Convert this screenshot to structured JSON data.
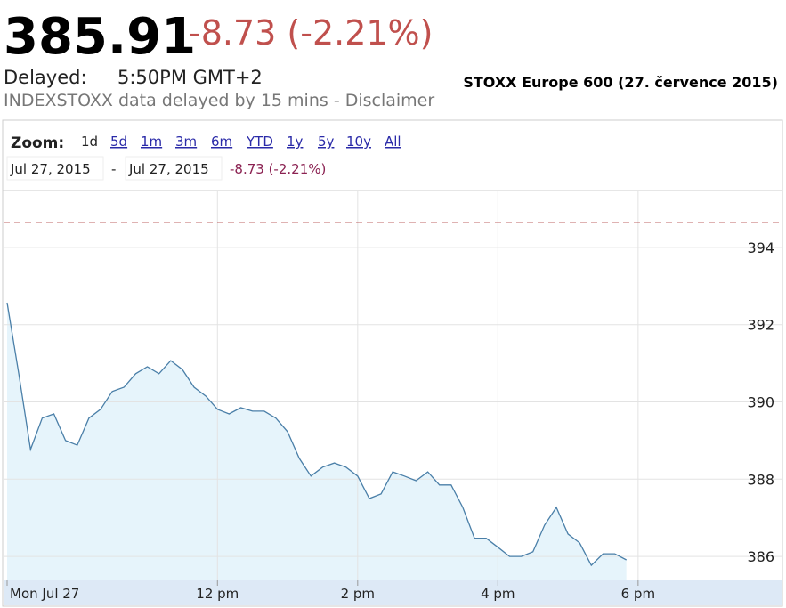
{
  "header": {
    "price": "385.91",
    "change": "-8.73 (-2.21%)",
    "delayed_label": "Delayed:",
    "delayed_time": "5:50PM GMT+2",
    "disclaimer": "INDEXSTOXX data delayed by 15 mins - Disclaimer",
    "side_title": "STOXX Europe 600 (27. července 2015)"
  },
  "zoom": {
    "label": "Zoom:",
    "options": [
      "1d",
      "5d",
      "1m",
      "3m",
      "6m",
      "YTD",
      "1y",
      "5y",
      "10y",
      "All"
    ],
    "from": "Jul 27, 2015",
    "separator": "-",
    "to": "Jul 27, 2015",
    "change": "-8.73 (-2.21%)"
  },
  "chart_data": {
    "type": "line",
    "x": [
      540,
      550,
      560,
      570,
      580,
      590,
      600,
      610,
      620,
      630,
      640,
      650,
      660,
      670,
      680,
      690,
      700,
      710,
      720,
      730,
      740,
      750,
      760,
      770,
      780,
      790,
      800,
      810,
      820,
      830,
      840,
      850,
      860,
      870,
      880,
      890,
      900,
      910,
      920,
      930,
      940,
      950,
      960,
      970,
      980,
      990,
      1000,
      1010,
      1020,
      1030,
      1040,
      1050,
      1060,
      1070
    ],
    "values": [
      392.57,
      390.73,
      388.77,
      389.58,
      389.69,
      389.0,
      388.88,
      389.58,
      389.81,
      390.27,
      390.38,
      390.73,
      390.91,
      390.73,
      391.07,
      390.84,
      390.38,
      390.15,
      389.81,
      389.69,
      389.85,
      389.76,
      389.76,
      389.58,
      389.23,
      388.54,
      388.08,
      388.31,
      388.42,
      388.31,
      388.08,
      387.5,
      387.62,
      388.19,
      388.08,
      387.96,
      388.19,
      387.85,
      387.85,
      387.27,
      386.47,
      386.47,
      386.24,
      386.0,
      386.0,
      386.12,
      386.81,
      387.27,
      386.58,
      386.35,
      385.77,
      386.07,
      386.07,
      385.91
    ],
    "color": "#4a7fa8",
    "fill": "#e6f4fb",
    "previous_close": 394.64,
    "xlim": [
      540,
      1202
    ],
    "xticks": [
      {
        "value": 540,
        "label": "Mon Jul 27"
      },
      {
        "value": 720,
        "label": "12 pm"
      },
      {
        "value": 840,
        "label": "2 pm"
      },
      {
        "value": 960,
        "label": "4 pm"
      },
      {
        "value": 1080,
        "label": "6 pm"
      }
    ],
    "ylim": [
      385.38,
      395.45
    ],
    "yticks": [
      386,
      388,
      390,
      392,
      394
    ],
    "grid": true
  }
}
